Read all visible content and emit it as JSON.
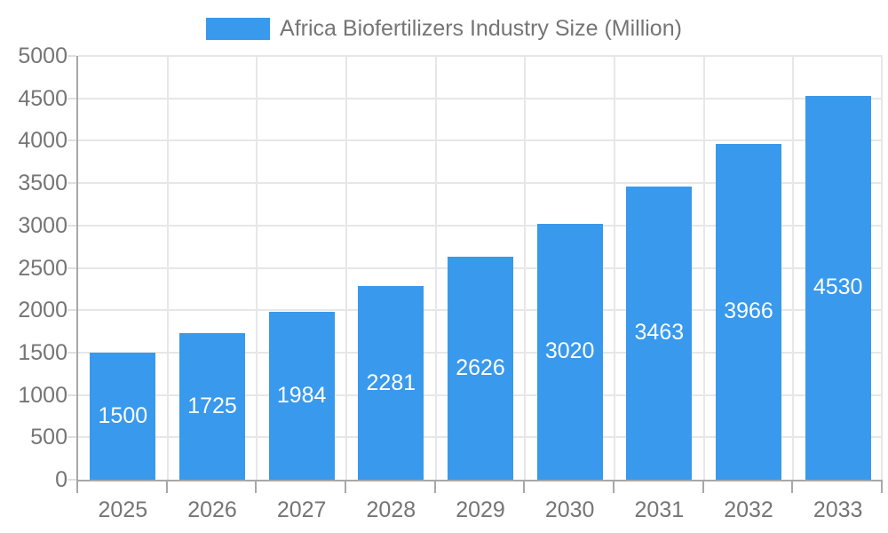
{
  "chart_data": {
    "type": "bar",
    "title": "Africa Biofertilizers Industry Size (Million)",
    "categories": [
      "2025",
      "2026",
      "2027",
      "2028",
      "2029",
      "2030",
      "2031",
      "2032",
      "2033"
    ],
    "values": [
      1500,
      1725,
      1984,
      2281,
      2626,
      3020,
      3463,
      3966,
      4530
    ],
    "xlabel": "",
    "ylabel": "",
    "ylim": [
      0,
      5000
    ],
    "y_tick_step": 500,
    "y_tick_labels": [
      "0",
      "500",
      "1000",
      "1500",
      "2000",
      "2500",
      "3000",
      "3500",
      "4000",
      "4500",
      "5000"
    ],
    "grid": true,
    "legend_position": "top-center",
    "value_label_position": "inside-center"
  },
  "colors": {
    "bar": "#3999EC",
    "axis_text": "#757575",
    "value_label_text": "#FFFFFF",
    "gridline": "#E7E7E7",
    "axis_line": "#A8A8A8",
    "y_tick": "#E0E0E0",
    "background": "#FFFFFF"
  }
}
